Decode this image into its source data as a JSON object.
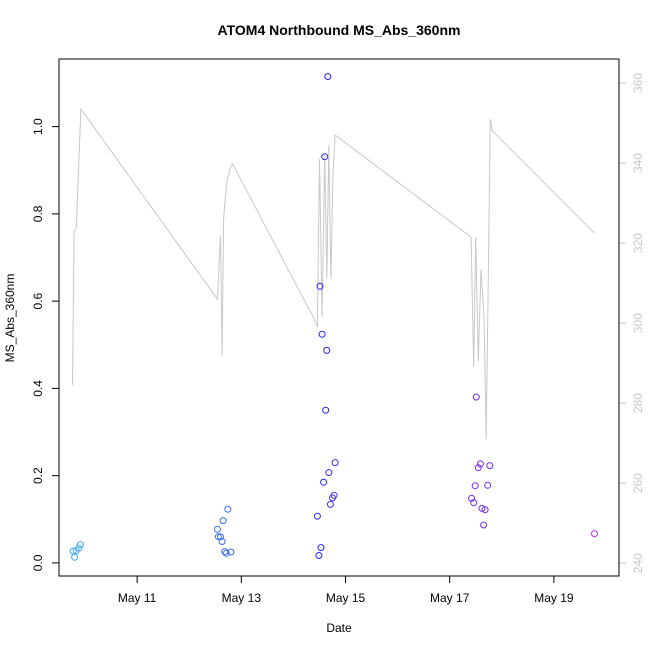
{
  "chart_data": {
    "type": "scatter",
    "title": "ATOM4 Northbound MS_Abs_360nm",
    "xlabel": "Date",
    "ylabel": "MS_Abs_360nm",
    "xlim": [
      9.5,
      20.25
    ],
    "ylim": [
      -0.03,
      1.155
    ],
    "y2lim": [
      236.8,
      366.0
    ],
    "x_ticks": [
      {
        "value": 11,
        "label": "May 11"
      },
      {
        "value": 13,
        "label": "May 13"
      },
      {
        "value": 15,
        "label": "May 15"
      },
      {
        "value": 17,
        "label": "May 17"
      },
      {
        "value": 19,
        "label": "May 19"
      }
    ],
    "y_ticks": [
      {
        "value": 0.0,
        "label": "0.0"
      },
      {
        "value": 0.2,
        "label": "0.2"
      },
      {
        "value": 0.4,
        "label": "0.4"
      },
      {
        "value": 0.6,
        "label": "0.6"
      },
      {
        "value": 0.8,
        "label": "0.8"
      },
      {
        "value": 1.0,
        "label": "1.0"
      }
    ],
    "y2_ticks": [
      {
        "value": 240,
        "label": "240"
      },
      {
        "value": 260,
        "label": "260"
      },
      {
        "value": 280,
        "label": "280"
      },
      {
        "value": 300,
        "label": "300"
      },
      {
        "value": 320,
        "label": "320"
      },
      {
        "value": 340,
        "label": "340"
      },
      {
        "value": 360,
        "label": "360"
      }
    ],
    "grid": false,
    "colors": {
      "line": "#c8c8c8",
      "axis": "#000000",
      "right_axis": "#c8c8c8"
    },
    "points": [
      {
        "x": 9.77,
        "y": 0.027,
        "color": "#3fa8f0"
      },
      {
        "x": 9.8,
        "y": 0.013,
        "color": "#3fa8f0"
      },
      {
        "x": 9.83,
        "y": 0.028,
        "color": "#3fa8f0"
      },
      {
        "x": 9.88,
        "y": 0.034,
        "color": "#3fa8f0"
      },
      {
        "x": 9.91,
        "y": 0.042,
        "color": "#3fa8f0"
      },
      {
        "x": 12.54,
        "y": 0.077,
        "color": "#3a6cf0"
      },
      {
        "x": 12.56,
        "y": 0.06,
        "color": "#3a6cf0"
      },
      {
        "x": 12.6,
        "y": 0.06,
        "color": "#3a6cf0"
      },
      {
        "x": 12.63,
        "y": 0.049,
        "color": "#3a6cf0"
      },
      {
        "x": 12.65,
        "y": 0.097,
        "color": "#3a6cf0"
      },
      {
        "x": 12.68,
        "y": 0.026,
        "color": "#3a6cf0"
      },
      {
        "x": 12.71,
        "y": 0.022,
        "color": "#3a6cf0"
      },
      {
        "x": 12.74,
        "y": 0.123,
        "color": "#3a6cf0"
      },
      {
        "x": 12.8,
        "y": 0.025,
        "color": "#3a6cf0"
      },
      {
        "x": 14.46,
        "y": 0.107,
        "color": "#2222ee"
      },
      {
        "x": 14.49,
        "y": 0.017,
        "color": "#2222ee"
      },
      {
        "x": 14.51,
        "y": 0.634,
        "color": "#2222ee"
      },
      {
        "x": 14.53,
        "y": 0.035,
        "color": "#2222ee"
      },
      {
        "x": 14.55,
        "y": 0.524,
        "color": "#2222ee"
      },
      {
        "x": 14.58,
        "y": 0.185,
        "color": "#2222ee"
      },
      {
        "x": 14.6,
        "y": 0.931,
        "color": "#2222ee"
      },
      {
        "x": 14.62,
        "y": 0.35,
        "color": "#2222ee"
      },
      {
        "x": 14.64,
        "y": 0.487,
        "color": "#2222ee"
      },
      {
        "x": 14.66,
        "y": 1.115,
        "color": "#2222ee"
      },
      {
        "x": 14.68,
        "y": 0.207,
        "color": "#4a2ae8"
      },
      {
        "x": 14.71,
        "y": 0.134,
        "color": "#4a2ae8"
      },
      {
        "x": 14.75,
        "y": 0.149,
        "color": "#4a2ae8"
      },
      {
        "x": 14.78,
        "y": 0.155,
        "color": "#4a2ae8"
      },
      {
        "x": 14.8,
        "y": 0.23,
        "color": "#4a2ae8"
      },
      {
        "x": 17.42,
        "y": 0.148,
        "color": "#7a2ae8"
      },
      {
        "x": 17.46,
        "y": 0.138,
        "color": "#7a2ae8"
      },
      {
        "x": 17.49,
        "y": 0.177,
        "color": "#7a2ae8"
      },
      {
        "x": 17.51,
        "y": 0.38,
        "color": "#7a2ae8"
      },
      {
        "x": 17.55,
        "y": 0.218,
        "color": "#7a2ae8"
      },
      {
        "x": 17.59,
        "y": 0.227,
        "color": "#7a2ae8"
      },
      {
        "x": 17.62,
        "y": 0.125,
        "color": "#7a2ae8"
      },
      {
        "x": 17.65,
        "y": 0.087,
        "color": "#7a2ae8"
      },
      {
        "x": 17.68,
        "y": 0.122,
        "color": "#7a2ae8"
      },
      {
        "x": 17.73,
        "y": 0.178,
        "color": "#7a2ae8"
      },
      {
        "x": 17.77,
        "y": 0.223,
        "color": "#7a2ae8"
      },
      {
        "x": 19.78,
        "y": 0.067,
        "color": "#b62ae8"
      }
    ],
    "line": [
      [
        9.76,
        284.5
      ],
      [
        9.79,
        323.0
      ],
      [
        9.83,
        323.5
      ],
      [
        9.92,
        353.5
      ],
      [
        12.54,
        306.0
      ],
      [
        12.6,
        322.0
      ],
      [
        12.63,
        292.0
      ],
      [
        12.66,
        326.0
      ],
      [
        12.68,
        329.5
      ],
      [
        12.72,
        335.0
      ],
      [
        12.78,
        338.5
      ],
      [
        12.83,
        339.8
      ],
      [
        14.38,
        301.5
      ],
      [
        14.46,
        299.0
      ],
      [
        14.5,
        341.0
      ],
      [
        14.55,
        301.5
      ],
      [
        14.6,
        342.0
      ],
      [
        14.64,
        311.0
      ],
      [
        14.68,
        344.5
      ],
      [
        14.72,
        311.0
      ],
      [
        14.76,
        337.5
      ],
      [
        14.8,
        347.0
      ],
      [
        17.41,
        321.5
      ],
      [
        17.46,
        289.0
      ],
      [
        17.5,
        321.5
      ],
      [
        17.55,
        290.5
      ],
      [
        17.6,
        313.5
      ],
      [
        17.66,
        301.5
      ],
      [
        17.7,
        271.0
      ],
      [
        17.78,
        351.0
      ],
      [
        17.82,
        348.0
      ],
      [
        19.78,
        322.5
      ]
    ]
  }
}
